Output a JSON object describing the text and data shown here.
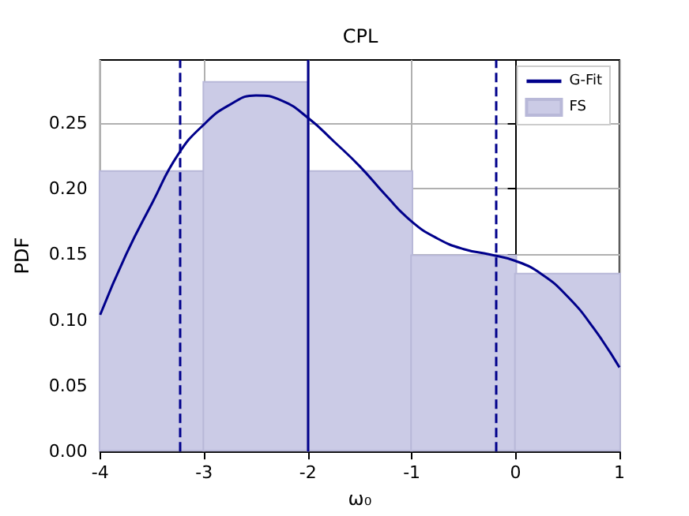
{
  "chart_data": {
    "type": "histogram",
    "title": "CPL",
    "xlabel": "ω₀",
    "ylabel": "PDF",
    "series": [
      {
        "type": "histogram",
        "name": "FS",
        "color": "#cbcbe6",
        "bins": [
          -4,
          -3,
          -2,
          -1,
          0,
          1
        ],
        "values": [
          0.214,
          0.282,
          0.214,
          0.15,
          0.136
        ]
      },
      {
        "type": "line",
        "name": "G-Fit",
        "color": "#00008b",
        "x": [
          -4,
          -3.75,
          -3.5,
          -3.25,
          -3,
          -2.75,
          -2.5,
          -2.25,
          -2,
          -1.75,
          -1.5,
          -1.25,
          -1,
          -0.75,
          -0.5,
          -0.25,
          0,
          0.25,
          0.5,
          0.75,
          1
        ],
        "values": [
          0.104,
          0.15,
          0.189,
          0.226,
          0.249,
          0.264,
          0.271,
          0.267,
          0.254,
          0.236,
          0.217,
          0.195,
          0.175,
          0.162,
          0.154,
          0.15,
          0.145,
          0.135,
          0.118,
          0.094,
          0.064
        ]
      }
    ],
    "ref_lines": [
      {
        "axis": "x",
        "value": -3.24,
        "color": "#00008b",
        "line_style": "dashed"
      },
      {
        "axis": "x",
        "value": -2,
        "color": "#00008b",
        "line_style": "solid"
      },
      {
        "axis": "x",
        "value": -0.19,
        "color": "#00008b",
        "line_style": "dashed"
      }
    ],
    "xlim": [
      -4,
      1
    ],
    "xticks": [
      -4,
      -3,
      -2,
      -1,
      0,
      1
    ],
    "ylim": [
      0,
      0.298
    ],
    "yticks": [
      {
        "value": 0,
        "label": "0.00"
      },
      0.05,
      {
        "value": 0.1,
        "label": "0.10"
      },
      0.15,
      {
        "value": 0.2,
        "label": "0.20"
      },
      0.25
    ],
    "grid": true,
    "legend": "top right"
  }
}
